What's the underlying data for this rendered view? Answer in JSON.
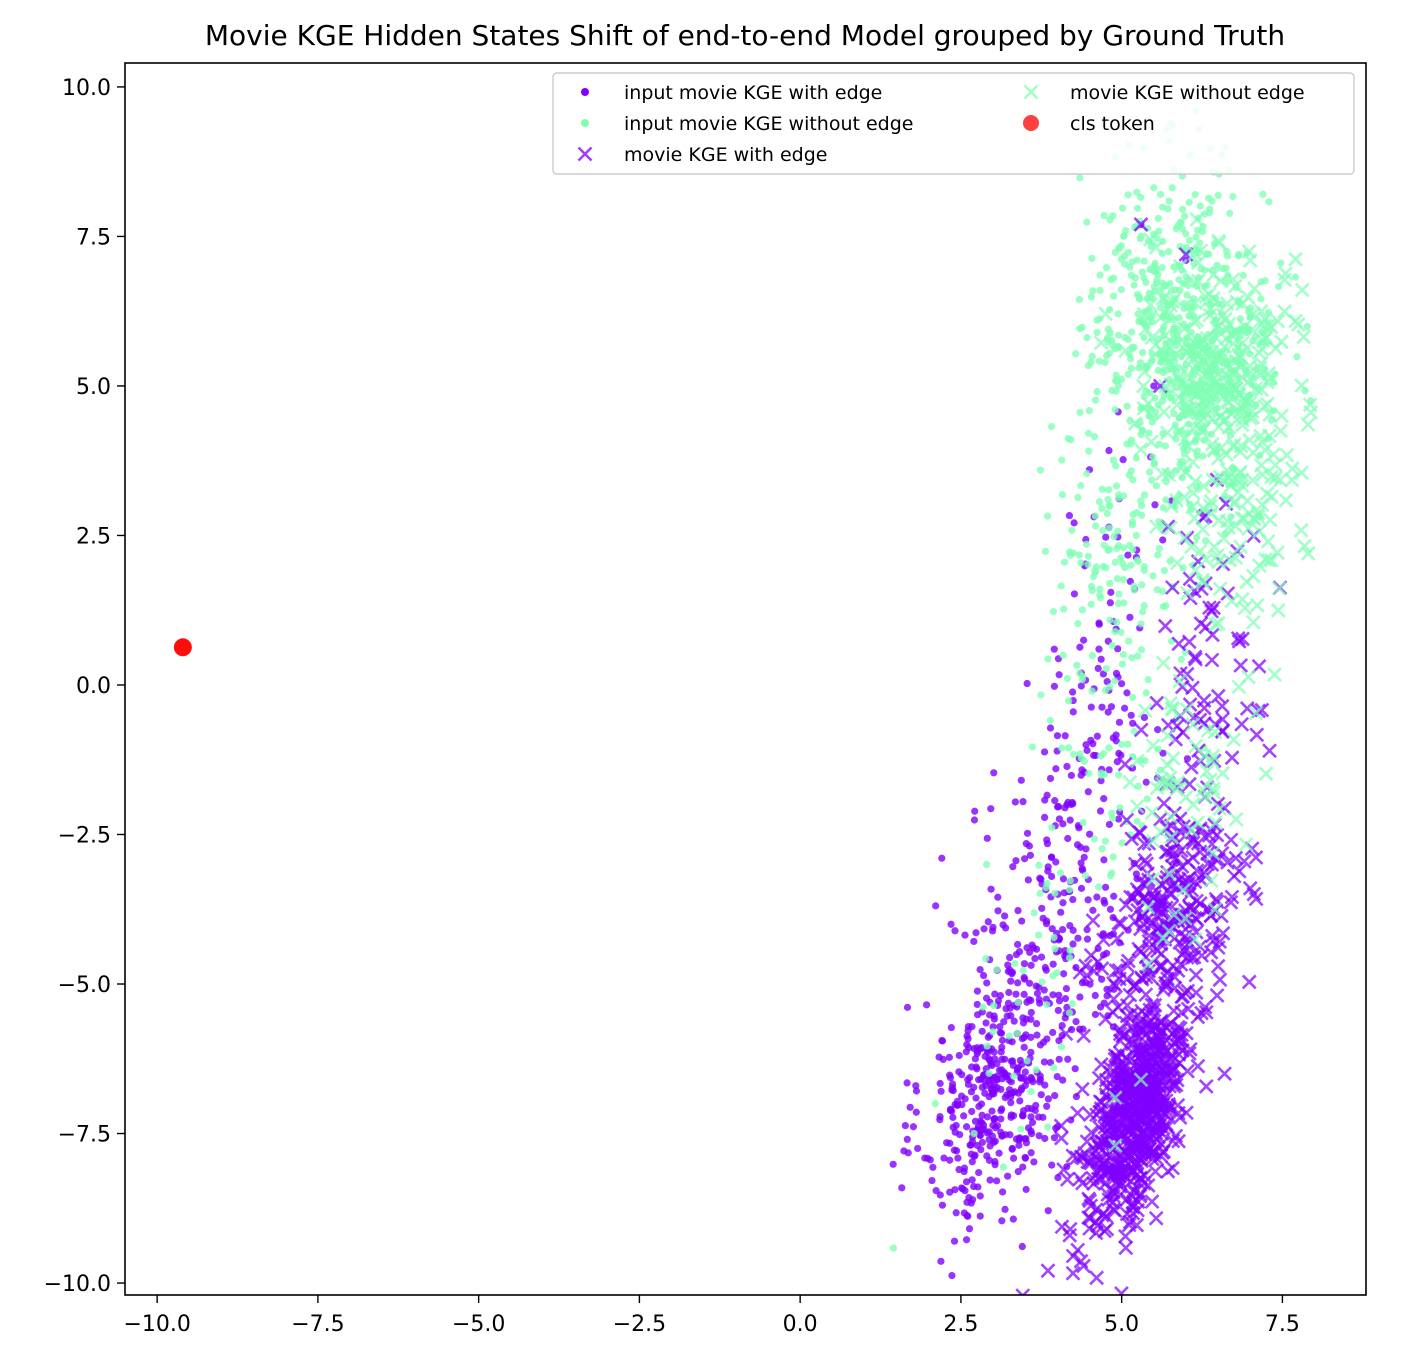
{
  "chart_data": {
    "type": "scatter",
    "title": "Movie KGE Hidden States Shift of end-to-end Model grouped by Ground Truth",
    "xlabel": "",
    "ylabel": "",
    "xlim": [
      -10.5,
      8.8
    ],
    "ylim": [
      -10.2,
      10.4
    ],
    "xticks": [
      -10.0,
      -7.5,
      -5.0,
      -2.5,
      0.0,
      2.5,
      5.0,
      7.5
    ],
    "xtick_labels": [
      "−10.0",
      "−7.5",
      "−5.0",
      "−2.5",
      "0.0",
      "2.5",
      "5.0",
      "7.5"
    ],
    "yticks": [
      10.0,
      7.5,
      5.0,
      2.5,
      0.0,
      -2.5,
      -5.0,
      -7.5,
      -10.0
    ],
    "ytick_labels": [
      "10.0",
      "7.5",
      "5.0",
      "2.5",
      "0.0",
      "−2.5",
      "−5.0",
      "−7.5",
      "−10.0"
    ],
    "grid": false,
    "legend_position": "top-right",
    "series": [
      {
        "name": "input movie KGE with edge",
        "marker": "dot",
        "color": "#8000ff",
        "clusters": [
          {
            "center": [
              3.0,
              -6.8
            ],
            "spread": [
              0.55,
              1.1
            ],
            "n": 380,
            "rho": 0.25
          },
          {
            "center": [
              4.0,
              -4.0
            ],
            "spread": [
              0.7,
              1.5
            ],
            "n": 220,
            "rho": 0.3
          },
          {
            "center": [
              4.6,
              -0.7
            ],
            "spread": [
              0.45,
              1.0
            ],
            "n": 80,
            "rho": 0.3
          },
          {
            "center": [
              5.0,
              2.6
            ],
            "spread": [
              0.45,
              0.9
            ],
            "n": 25,
            "rho": 0.2
          }
        ],
        "points": [
          [
            5.3,
            7.7
          ],
          [
            6.0,
            7.1
          ],
          [
            5.5,
            5.0
          ],
          [
            2.4,
            -9.3
          ],
          [
            5.1,
            -4.1
          ],
          [
            4.5,
            3.6
          ],
          [
            3.5,
            -7.9
          ]
        ]
      },
      {
        "name": "input movie KGE without edge",
        "marker": "dot",
        "color": "#80ffb4",
        "clusters": [
          {
            "center": [
              5.9,
              6.0
            ],
            "spread": [
              0.7,
              1.3
            ],
            "n": 520,
            "rho": -0.1
          },
          {
            "center": [
              5.0,
              2.2
            ],
            "spread": [
              0.65,
              1.2
            ],
            "n": 160,
            "rho": 0.2
          },
          {
            "center": [
              4.8,
              -1.5
            ],
            "spread": [
              0.6,
              1.2
            ],
            "n": 60,
            "rho": 0.3
          },
          {
            "center": [
              3.8,
              -4.8
            ],
            "spread": [
              0.6,
              1.2
            ],
            "n": 40,
            "rho": 0.3
          }
        ],
        "points": [
          [
            5.7,
            9.3
          ],
          [
            6.2,
            9.3
          ],
          [
            2.9,
            -3.0
          ],
          [
            2.1,
            -7.0
          ],
          [
            3.0,
            -5.8
          ]
        ]
      },
      {
        "name": "movie KGE with edge",
        "marker": "x",
        "color": "#8000ff",
        "clusters": [
          {
            "center": [
              5.2,
              -7.2
            ],
            "spread": [
              0.42,
              1.0
            ],
            "n": 600,
            "rho": 0.55
          },
          {
            "center": [
              5.8,
              -3.9
            ],
            "spread": [
              0.55,
              0.9
            ],
            "n": 240,
            "rho": 0.4
          },
          {
            "center": [
              6.2,
              -0.9
            ],
            "spread": [
              0.45,
              1.1
            ],
            "n": 60,
            "rho": 0.2
          },
          {
            "center": [
              6.2,
              1.7
            ],
            "spread": [
              0.4,
              0.7
            ],
            "n": 25,
            "rho": 0.1
          }
        ],
        "points": [
          [
            5.3,
            7.7
          ],
          [
            6.0,
            7.2
          ],
          [
            5.6,
            5.0
          ],
          [
            4.2,
            -9.1
          ],
          [
            6.6,
            -6.5
          ],
          [
            7.3,
            -1.1
          ],
          [
            7.0,
            -3.4
          ]
        ]
      },
      {
        "name": "movie KGE without edge",
        "marker": "x",
        "color": "#80ffb4",
        "clusters": [
          {
            "center": [
              6.5,
              5.3
            ],
            "spread": [
              0.55,
              1.0
            ],
            "n": 300,
            "rho": -0.1
          },
          {
            "center": [
              6.7,
              2.5
            ],
            "spread": [
              0.55,
              0.9
            ],
            "n": 80,
            "rho": 0.2
          },
          {
            "center": [
              6.3,
              -0.8
            ],
            "spread": [
              0.5,
              1.0
            ],
            "n": 50,
            "rho": 0.2
          },
          {
            "center": [
              5.8,
              -3.2
            ],
            "spread": [
              0.5,
              0.8
            ],
            "n": 20,
            "rho": 0.2
          }
        ],
        "points": [
          [
            7.9,
            2.2
          ],
          [
            7.0,
            7.1
          ],
          [
            4.9,
            -7.7
          ],
          [
            5.3,
            -6.6
          ],
          [
            4.9,
            -6.9
          ]
        ]
      },
      {
        "name": "cls token",
        "marker": "big-dot",
        "color": "#ff0000",
        "clusters": [],
        "points": [
          [
            -9.6,
            0.63
          ]
        ]
      }
    ]
  }
}
